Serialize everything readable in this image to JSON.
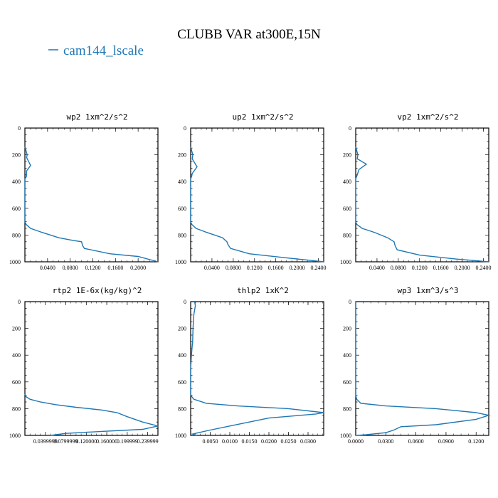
{
  "figure": {
    "title": "CLUBB VAR at300E,15N",
    "legend_entry": "cam144_lscale",
    "line_color": "#1f77b4"
  },
  "chart_data": [
    {
      "type": "line",
      "title": "wp2  1xm^2/s^2",
      "x_ticklabels": [
        "0.0400",
        "0.0800",
        "0.1200",
        "0.1600",
        "0.2000"
      ],
      "y_ticklabels": [
        "0",
        "200",
        "400",
        "600",
        "800",
        "1000"
      ],
      "xlim": [
        0.0,
        0.235
      ],
      "ylim": [
        1000,
        0
      ],
      "series": [
        {
          "x": [
            0.0,
            0.002,
            0.004,
            0.003,
            0.01,
            0.003,
            0.003,
            0.0,
            0.0,
            0.002,
            0.01,
            0.03,
            0.06,
            0.085,
            0.1,
            0.102,
            0.105,
            0.15,
            0.2,
            0.235
          ],
          "y": [
            140,
            170,
            200,
            220,
            280,
            320,
            360,
            380,
            700,
            720,
            750,
            780,
            820,
            840,
            850,
            880,
            900,
            940,
            960,
            1000
          ]
        }
      ]
    },
    {
      "type": "line",
      "title": "up2  1xm^2/s^2",
      "x_ticklabels": [
        "0.0400",
        "0.0800",
        "0.1200",
        "0.1600",
        "0.2000",
        "0.2400"
      ],
      "y_ticklabels": [
        "0",
        "200",
        "400",
        "600",
        "800",
        "1000"
      ],
      "xlim": [
        0.0,
        0.25
      ],
      "ylim": [
        1000,
        0
      ],
      "series": [
        {
          "x": [
            0.0,
            0.002,
            0.004,
            0.003,
            0.012,
            0.003,
            0.002,
            0.0,
            0.0,
            0.002,
            0.01,
            0.03,
            0.06,
            0.068,
            0.07,
            0.075,
            0.11,
            0.18,
            0.25
          ],
          "y": [
            140,
            170,
            200,
            230,
            290,
            340,
            360,
            380,
            700,
            720,
            750,
            780,
            820,
            850,
            870,
            900,
            940,
            970,
            1000
          ]
        }
      ]
    },
    {
      "type": "line",
      "title": "vp2  1xm^2/s^2",
      "x_ticklabels": [
        "0.0400",
        "0.0800",
        "0.1200",
        "0.1600",
        "0.2000",
        "0.2400"
      ],
      "y_ticklabels": [
        "0",
        "200",
        "400",
        "600",
        "800",
        "1000"
      ],
      "xlim": [
        0.0,
        0.25
      ],
      "ylim": [
        1000,
        0
      ],
      "series": [
        {
          "x": [
            0.0,
            0.002,
            0.004,
            0.003,
            0.02,
            0.006,
            0.003,
            0.0,
            0.0,
            0.002,
            0.012,
            0.035,
            0.06,
            0.072,
            0.074,
            0.078,
            0.12,
            0.19,
            0.25
          ],
          "y": [
            140,
            170,
            200,
            230,
            270,
            310,
            350,
            380,
            700,
            720,
            750,
            780,
            820,
            850,
            880,
            910,
            950,
            980,
            1000
          ]
        }
      ]
    },
    {
      "type": "line",
      "title": "rtp2  1E-6x(kg/kg)^2",
      "x_ticklabels": [
        "0.0399999",
        "0.0799999",
        "0.120000",
        "0.160000",
        "0.199999",
        "0.239999"
      ],
      "y_ticklabels": [
        "0",
        "200",
        "400",
        "600",
        "800",
        "1000"
      ],
      "xlim": [
        0.0,
        0.26
      ],
      "ylim": [
        1000,
        0
      ],
      "series": [
        {
          "x": [
            0.0,
            0.002,
            0.01,
            0.03,
            0.06,
            0.1,
            0.15,
            0.18,
            0.2,
            0.23,
            0.26,
            0.23,
            0.15,
            0.08,
            0.05
          ],
          "y": [
            690,
            710,
            730,
            750,
            770,
            790,
            810,
            830,
            860,
            900,
            930,
            955,
            970,
            985,
            1000
          ]
        }
      ]
    },
    {
      "type": "line",
      "title": "thlp2  1xK^2",
      "x_ticklabels": [
        "0.0050",
        "0.0100",
        "0.0150",
        "0.0200",
        "0.0250",
        "0.0300"
      ],
      "y_ticklabels": [
        "0",
        "200",
        "400",
        "600",
        "800",
        "1000"
      ],
      "xlim": [
        0.0,
        0.034
      ],
      "ylim": [
        1000,
        0
      ],
      "series": [
        {
          "x": [
            0.001,
            0.0012,
            0.0008,
            0.0006,
            0.0005,
            0.0004,
            0.0002,
            0.0,
            0.0,
            0.0008,
            0.004,
            0.012,
            0.025,
            0.034,
            0.032,
            0.02,
            0.01,
            0.005,
            0.002,
            0.0005,
            0.0015
          ],
          "y": [
            0,
            30,
            100,
            200,
            300,
            330,
            400,
            500,
            700,
            730,
            760,
            780,
            800,
            830,
            840,
            870,
            930,
            960,
            980,
            990,
            1000
          ]
        }
      ]
    },
    {
      "type": "line",
      "title": "wp3  1xm^3/s^3",
      "x_ticklabels": [
        "0.0000",
        "0.0300",
        "0.0600",
        "0.0900",
        "0.1200"
      ],
      "y_ticklabels": [
        "0",
        "200",
        "400",
        "600",
        "800",
        "1000"
      ],
      "xlim": [
        0.0,
        0.1326
      ],
      "ylim": [
        1000,
        0
      ],
      "series": [
        {
          "x": [
            0.0,
            0.0,
            0.001,
            0.005,
            0.03,
            0.08,
            0.12,
            0.1326,
            0.12,
            0.08,
            0.045,
            0.038,
            0.03,
            0.01,
            0.0
          ],
          "y": [
            0,
            700,
            730,
            760,
            780,
            800,
            830,
            850,
            880,
            920,
            935,
            960,
            980,
            995,
            1000
          ]
        }
      ]
    }
  ]
}
